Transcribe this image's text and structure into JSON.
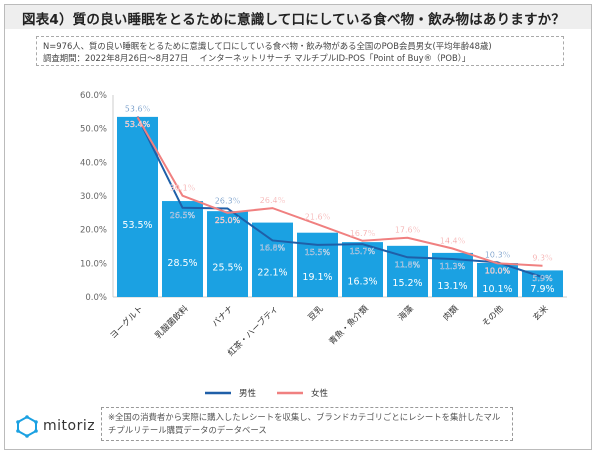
{
  "title": "図表4）質の良い睡眠をとるために意識して口にしている食べ物・飲み物はありますか？",
  "note": {
    "line1": "N=976人、質の良い睡眠をとるために意識して口にしている食べ物・飲み物がある全国のPOB会員男女(平均年齢48歳)",
    "line2": "調査期間：2022年8月26日～8月27日　 インターネットリサーチ マルチプルID-POS「Point of Buy®（POB）」"
  },
  "footnote": "※全国の消費者から実際に購入したレシートを収集し、ブランドカテゴリごとにレシートを集計したマルチプルリテール購買データのデータベース",
  "logo": "mitoriz",
  "colors": {
    "bar": "#1ba1e2",
    "male": "#1f5fa8",
    "female": "#f08080"
  },
  "chart_data": {
    "type": "bar",
    "categories": [
      "ヨーグルト",
      "乳酸菌飲料",
      "バナナ",
      "紅茶・ハーブティ",
      "豆乳",
      "青魚・魚介類",
      "海藻",
      "肉類",
      "その他",
      "玄米"
    ],
    "ylim": [
      0,
      60
    ],
    "yticks": [
      "0.0%",
      "10.0%",
      "20.0%",
      "30.0%",
      "40.0%",
      "50.0%",
      "60.0%"
    ],
    "grid": false,
    "legend": "bottom",
    "values": [
      53.5,
      28.5,
      25.5,
      22.1,
      19.1,
      16.3,
      15.2,
      13.1,
      10.1,
      7.9
    ],
    "series": [
      {
        "name": "男性",
        "type": "line",
        "values": [
          53.6,
          26.5,
          26.3,
          16.8,
          15.5,
          15.7,
          11.8,
          11.3,
          10.3,
          5.9
        ]
      },
      {
        "name": "女性",
        "type": "line",
        "values": [
          53.4,
          30.1,
          25.0,
          26.4,
          21.6,
          16.7,
          17.6,
          14.4,
          10.0,
          9.3
        ]
      }
    ]
  }
}
